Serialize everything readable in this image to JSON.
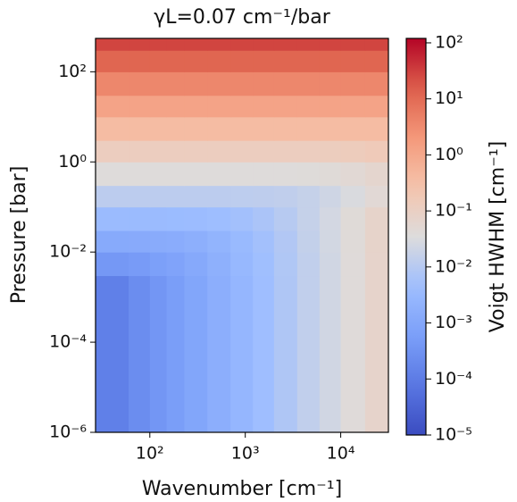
{
  "chart_data": {
    "type": "heatmap",
    "title": "γL=0.07 cm⁻¹/bar",
    "xlabel": "Wavenumber [cm⁻¹]",
    "ylabel": "Pressure [bar]",
    "colorbar_label": "Voigt HWHM [cm⁻¹]",
    "colormap": "coolwarm",
    "xscale": "log",
    "yscale": "log",
    "cscale": "log",
    "xlim": [
      27,
      31600
    ],
    "ylim": [
      1e-06,
      550
    ],
    "clim": [
      1e-05,
      120
    ],
    "xticks": [
      {
        "value": 100,
        "label": "10²"
      },
      {
        "value": 1000,
        "label": "10³"
      },
      {
        "value": 10000,
        "label": "10⁴"
      }
    ],
    "yticks": [
      {
        "value": 1e-06,
        "label": "10⁻⁶"
      },
      {
        "value": 0.0001,
        "label": "10⁻⁴"
      },
      {
        "value": 0.01,
        "label": "10⁻²"
      },
      {
        "value": 1,
        "label": "10⁰"
      },
      {
        "value": 100,
        "label": "10²"
      }
    ],
    "cticks": [
      {
        "value": 1e-05,
        "label": "10⁻⁵"
      },
      {
        "value": 0.0001,
        "label": "10⁻⁴"
      },
      {
        "value": 0.001,
        "label": "10⁻³"
      },
      {
        "value": 0.01,
        "label": "10⁻²"
      },
      {
        "value": 0.1,
        "label": "10⁻¹"
      },
      {
        "value": 1,
        "label": "10⁰"
      },
      {
        "value": 10,
        "label": "10¹"
      },
      {
        "value": 100,
        "label": "10²"
      }
    ],
    "x_edges": [
      27,
      60,
      100,
      150,
      230,
      400,
      700,
      1200,
      2000,
      3500,
      6000,
      10000,
      18000,
      31600
    ],
    "y_edges": [
      1e-06,
      0.003,
      0.01,
      0.03,
      0.1,
      0.3,
      1,
      3,
      10,
      30,
      100,
      300,
      550
    ],
    "z": [
      [
        0.00012,
        0.00023,
        0.00037,
        0.00056,
        0.00091,
        0.0016,
        0.00275,
        0.0046,
        0.0079,
        0.014,
        0.023,
        0.04,
        0.072
      ],
      [
        0.00041,
        0.00049,
        0.00061,
        0.00079,
        0.0011,
        0.0018,
        0.003,
        0.0048,
        0.0081,
        0.014,
        0.023,
        0.04,
        0.072
      ],
      [
        0.0012,
        0.00125,
        0.0013,
        0.0014,
        0.0017,
        0.0023,
        0.0034,
        0.0053,
        0.0086,
        0.015,
        0.024,
        0.041,
        0.073
      ],
      [
        0.0038,
        0.0038,
        0.0038,
        0.0039,
        0.004,
        0.0044,
        0.0053,
        0.0069,
        0.01,
        0.016,
        0.025,
        0.042,
        0.074
      ],
      [
        0.012,
        0.012,
        0.012,
        0.012,
        0.012,
        0.012,
        0.0122,
        0.0126,
        0.0136,
        0.0161,
        0.0215,
        0.03,
        0.047
      ],
      [
        0.038,
        0.038,
        0.038,
        0.038,
        0.038,
        0.038,
        0.038,
        0.038,
        0.038,
        0.039,
        0.0425,
        0.049,
        0.064
      ],
      [
        0.12,
        0.12,
        0.12,
        0.12,
        0.12,
        0.12,
        0.12,
        0.12,
        0.12,
        0.12,
        0.125,
        0.133,
        0.155
      ],
      [
        0.38,
        0.38,
        0.38,
        0.38,
        0.38,
        0.38,
        0.38,
        0.38,
        0.38,
        0.38,
        0.38,
        0.38,
        0.39
      ],
      [
        1.2,
        1.2,
        1.2,
        1.2,
        1.2,
        1.2,
        1.2,
        1.2,
        1.2,
        1.2,
        1.2,
        1.2,
        1.2
      ],
      [
        3.8,
        3.8,
        3.8,
        3.8,
        3.8,
        3.8,
        3.8,
        3.8,
        3.8,
        3.8,
        3.8,
        3.8,
        3.8
      ],
      [
        12,
        12,
        12,
        12,
        12,
        12,
        12,
        12,
        12,
        12,
        12,
        12,
        12
      ],
      [
        28,
        28,
        28,
        28,
        28,
        28,
        28,
        28,
        28,
        28,
        28,
        28,
        28
      ]
    ]
  }
}
